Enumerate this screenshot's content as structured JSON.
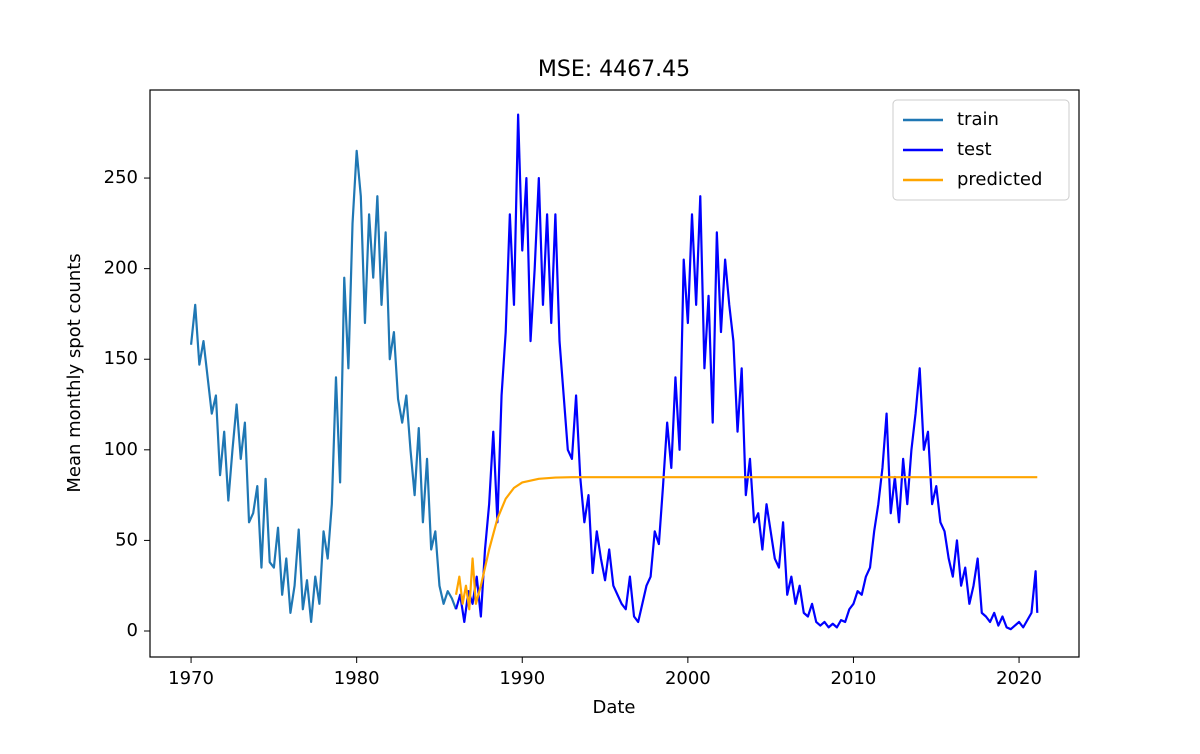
{
  "chart_data": {
    "type": "line",
    "title": "MSE: 4467.45",
    "x_label": "Date",
    "y_label": "Mean monthly spot counts",
    "xlim": [
      1967.52,
      2023.62
    ],
    "ylim": [
      -14.35,
      298.6
    ],
    "xticks": [
      1970,
      1980,
      1990,
      2000,
      2010,
      2020
    ],
    "yticks": [
      0,
      50,
      100,
      150,
      200,
      250
    ],
    "legend": "upper right",
    "grid": false,
    "series": [
      {
        "name": "train",
        "color": "#1f77b4",
        "x": [
          1970,
          1970.25,
          1970.5,
          1970.75,
          1971,
          1971.25,
          1971.5,
          1971.75,
          1972,
          1972.25,
          1972.5,
          1972.75,
          1973,
          1973.25,
          1973.5,
          1973.75,
          1974,
          1974.25,
          1974.5,
          1974.75,
          1975,
          1975.25,
          1975.5,
          1975.75,
          1976,
          1976.25,
          1976.5,
          1976.75,
          1977,
          1977.25,
          1977.5,
          1977.75,
          1978,
          1978.25,
          1978.5,
          1978.75,
          1979,
          1979.25,
          1979.5,
          1979.75,
          1980,
          1980.25,
          1980.5,
          1980.75,
          1981,
          1981.25,
          1981.5,
          1981.75,
          1982,
          1982.25,
          1982.5,
          1982.75,
          1983,
          1983.25,
          1983.5,
          1983.75,
          1984,
          1984.25,
          1984.5,
          1984.75,
          1985,
          1985.25,
          1985.5,
          1985.75,
          1986
        ],
        "values": [
          158,
          180,
          147,
          160,
          140,
          120,
          130,
          86,
          110,
          72,
          100,
          125,
          95,
          115,
          60,
          65,
          80,
          35,
          84,
          38,
          35,
          57,
          20,
          40,
          10,
          25,
          56,
          12,
          28,
          5,
          30,
          15,
          55,
          40,
          70,
          140,
          82,
          195,
          145,
          225,
          265,
          240,
          170,
          230,
          195,
          240,
          180,
          220,
          150,
          165,
          128,
          115,
          130,
          100,
          75,
          112,
          60,
          95,
          45,
          55,
          25,
          15,
          22,
          18,
          12
        ]
      },
      {
        "name": "test",
        "color": "#0000ff",
        "x": [
          1986,
          1986.25,
          1986.5,
          1986.75,
          1987,
          1987.25,
          1987.5,
          1987.75,
          1988,
          1988.25,
          1988.5,
          1988.75,
          1989,
          1989.25,
          1989.5,
          1989.75,
          1990,
          1990.25,
          1990.5,
          1990.75,
          1991,
          1991.25,
          1991.5,
          1991.75,
          1992,
          1992.25,
          1992.5,
          1992.75,
          1993,
          1993.25,
          1993.5,
          1993.75,
          1994,
          1994.25,
          1994.5,
          1994.75,
          1995,
          1995.25,
          1995.5,
          1995.75,
          1996,
          1996.25,
          1996.5,
          1996.75,
          1997,
          1997.25,
          1997.5,
          1997.75,
          1998,
          1998.25,
          1998.5,
          1998.75,
          1999,
          1999.25,
          1999.5,
          1999.75,
          2000,
          2000.25,
          2000.5,
          2000.75,
          2001,
          2001.25,
          2001.5,
          2001.75,
          2002,
          2002.25,
          2002.5,
          2002.75,
          2003,
          2003.25,
          2003.5,
          2003.75,
          2004,
          2004.25,
          2004.5,
          2004.75,
          2005,
          2005.25,
          2005.5,
          2005.75,
          2006,
          2006.25,
          2006.5,
          2006.75,
          2007,
          2007.25,
          2007.5,
          2007.75,
          2008,
          2008.25,
          2008.5,
          2008.75,
          2009,
          2009.25,
          2009.5,
          2009.75,
          2010,
          2010.25,
          2010.5,
          2010.75,
          2011,
          2011.25,
          2011.5,
          2011.75,
          2012,
          2012.25,
          2012.5,
          2012.75,
          2013,
          2013.25,
          2013.5,
          2013.75,
          2014,
          2014.25,
          2014.5,
          2014.75,
          2015,
          2015.25,
          2015.5,
          2015.75,
          2016,
          2016.25,
          2016.5,
          2016.75,
          2017,
          2017.25,
          2017.5,
          2017.75,
          2018,
          2018.25,
          2018.5,
          2018.75,
          2019,
          2019.25,
          2019.5,
          2019.75,
          2020,
          2020.25,
          2020.5,
          2020.75,
          2021,
          2021.1
        ],
        "values": [
          12,
          20,
          5,
          22,
          15,
          30,
          8,
          45,
          70,
          110,
          60,
          130,
          165,
          230,
          180,
          285,
          210,
          250,
          160,
          200,
          250,
          180,
          230,
          170,
          230,
          160,
          130,
          100,
          95,
          130,
          85,
          60,
          75,
          32,
          55,
          40,
          28,
          45,
          25,
          20,
          15,
          12,
          30,
          8,
          5,
          15,
          25,
          30,
          55,
          48,
          80,
          115,
          90,
          140,
          100,
          205,
          170,
          230,
          180,
          240,
          145,
          185,
          115,
          220,
          165,
          205,
          180,
          160,
          110,
          145,
          75,
          95,
          60,
          65,
          45,
          70,
          55,
          40,
          35,
          60,
          20,
          30,
          15,
          25,
          10,
          8,
          15,
          5,
          3,
          5,
          2,
          4,
          2,
          6,
          5,
          12,
          15,
          22,
          20,
          30,
          35,
          55,
          70,
          90,
          120,
          65,
          85,
          60,
          95,
          70,
          100,
          120,
          145,
          100,
          110,
          70,
          80,
          60,
          55,
          40,
          30,
          50,
          25,
          35,
          15,
          25,
          40,
          10,
          8,
          5,
          10,
          3,
          8,
          2,
          1,
          3,
          5,
          2,
          6,
          10,
          33,
          10
        ]
      },
      {
        "name": "predicted",
        "color": "#ffa500",
        "x": [
          1986,
          1986.2,
          1986.4,
          1986.6,
          1986.8,
          1987,
          1987.2,
          1987.5,
          1988,
          1988.5,
          1989,
          1989.5,
          1990,
          1991,
          1992,
          1993,
          2021.1
        ],
        "values": [
          20,
          30,
          15,
          25,
          12,
          40,
          15,
          25,
          45,
          62,
          73,
          79,
          82,
          84,
          84.7,
          84.9,
          84.9
        ]
      }
    ]
  }
}
